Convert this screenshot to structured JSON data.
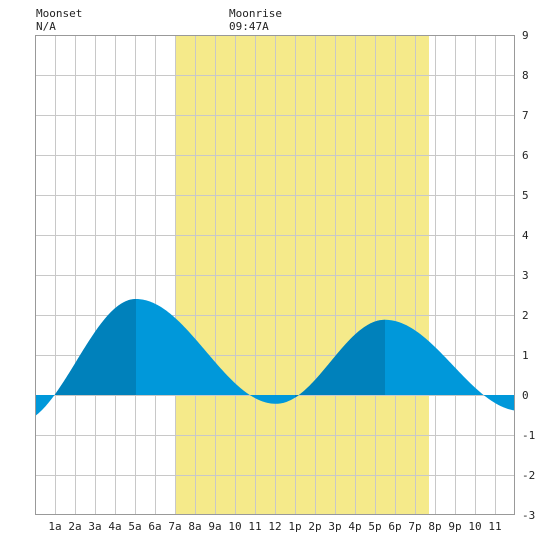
{
  "header": {
    "moonset_label": "Moonset",
    "moonset_value": "N/A",
    "moonrise_label": "Moonrise",
    "moonrise_value": "09:47A"
  },
  "chart_data": {
    "type": "area",
    "title": "",
    "xlabel": "",
    "ylabel": "",
    "x_unit": "hour",
    "xlim": [
      0,
      24
    ],
    "ylim": [
      -3,
      9
    ],
    "y_ticks": [
      -3,
      -2,
      -1,
      0,
      1,
      2,
      3,
      4,
      5,
      6,
      7,
      8,
      9
    ],
    "x_ticks": [
      {
        "x": 1,
        "label": "1a"
      },
      {
        "x": 2,
        "label": "2a"
      },
      {
        "x": 3,
        "label": "3a"
      },
      {
        "x": 4,
        "label": "4a"
      },
      {
        "x": 5,
        "label": "5a"
      },
      {
        "x": 6,
        "label": "6a"
      },
      {
        "x": 7,
        "label": "7a"
      },
      {
        "x": 8,
        "label": "8a"
      },
      {
        "x": 9,
        "label": "9a"
      },
      {
        "x": 10,
        "label": "10"
      },
      {
        "x": 11,
        "label": "11"
      },
      {
        "x": 12,
        "label": "12"
      },
      {
        "x": 13,
        "label": "1p"
      },
      {
        "x": 14,
        "label": "2p"
      },
      {
        "x": 15,
        "label": "3p"
      },
      {
        "x": 16,
        "label": "4p"
      },
      {
        "x": 17,
        "label": "5p"
      },
      {
        "x": 18,
        "label": "6p"
      },
      {
        "x": 19,
        "label": "7p"
      },
      {
        "x": 20,
        "label": "8p"
      },
      {
        "x": 21,
        "label": "9p"
      },
      {
        "x": 22,
        "label": "10"
      },
      {
        "x": 23,
        "label": "11"
      }
    ],
    "grid": true,
    "daylight": {
      "start": 7.0,
      "end": 19.7
    },
    "extremes": [
      {
        "x": -0.9,
        "y": -0.7
      },
      {
        "x": 5.05,
        "y": 2.4
      },
      {
        "x": 12.05,
        "y": -0.22
      },
      {
        "x": 17.5,
        "y": 1.88
      },
      {
        "x": 24.3,
        "y": -0.4
      }
    ],
    "dark_bands": [
      {
        "start": 1.0,
        "end": 5.05
      },
      {
        "start": 13.0,
        "end": 17.5
      }
    ],
    "colors": {
      "tide": "#0098da",
      "tide_dark": "#0081bb",
      "daylight": "#f5ea8a",
      "grid": "#c8c8c8",
      "border": "#999999"
    }
  }
}
